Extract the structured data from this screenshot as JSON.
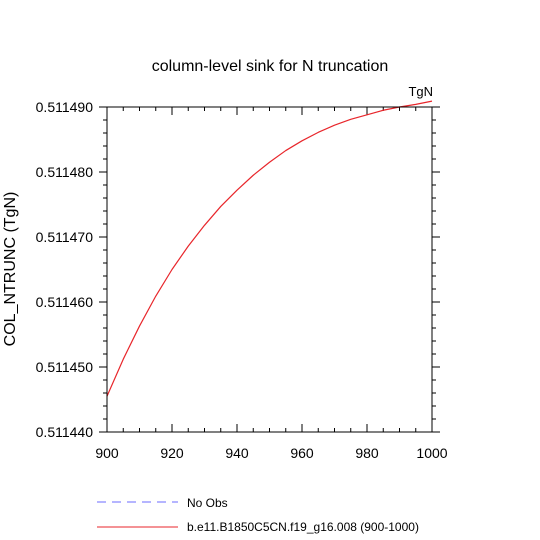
{
  "chart_data": {
    "type": "line",
    "title": "column-level sink for N truncation",
    "units_label": "TgN",
    "ylabel": "COL_NTRUNC  (TgN)",
    "xlabel": "",
    "xlim": [
      900,
      1000
    ],
    "ylim": [
      0.51144,
      0.51149
    ],
    "x_ticks": [
      "900",
      "920",
      "940",
      "960",
      "980",
      "1000"
    ],
    "y_ticks": [
      "0.511440",
      "0.511450",
      "0.511460",
      "0.511470",
      "0.511480",
      "0.511490"
    ],
    "grid": false,
    "series": [
      {
        "name": "b.e11.B1850C5CN.f19_g16.008 (900-1000)",
        "color": "#e8262b",
        "x": [
          900,
          905,
          910,
          915,
          920,
          925,
          930,
          935,
          940,
          945,
          950,
          955,
          960,
          965,
          970,
          975,
          980,
          985,
          990,
          995,
          1000
        ],
        "y": [
          0.5114455,
          0.5114512,
          0.5114563,
          0.5114609,
          0.511465,
          0.5114686,
          0.5114718,
          0.5114747,
          0.5114772,
          0.5114795,
          0.5114815,
          0.5114833,
          0.5114848,
          0.5114861,
          0.5114872,
          0.5114881,
          0.5114888,
          0.5114895,
          0.51149,
          0.5114904,
          0.5114909
        ]
      }
    ],
    "legend": {
      "placement": "bottom",
      "entries": [
        {
          "label": "No Obs",
          "style": "dashed",
          "color": "#6b6bff"
        },
        {
          "label": "b.e11.B1850C5CN.f19_g16.008 (900-1000)",
          "style": "solid",
          "color": "#e8262b"
        }
      ]
    }
  }
}
